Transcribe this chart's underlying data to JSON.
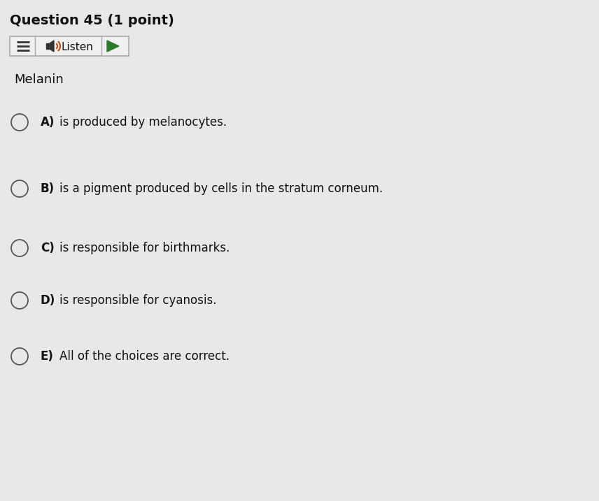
{
  "background_color": "#e8e8e8",
  "title": "Question 45 (1 point)",
  "title_fontsize": 14,
  "question_text": "Melanin",
  "question_fontsize": 13,
  "options": [
    {
      "label": "A)",
      "text": "is produced by melanocytes."
    },
    {
      "label": "B)",
      "text": "is a pigment produced by cells in the stratum corneum."
    },
    {
      "label": "C)",
      "text": "is responsible for birthmarks."
    },
    {
      "label": "D)",
      "text": "is responsible for cyanosis."
    },
    {
      "label": "E)",
      "text": "All of the choices are correct."
    }
  ],
  "option_fontsize": 12,
  "label_fontsize": 12,
  "text_color": "#111111",
  "circle_color": "#555555",
  "toolbar_bg": "#f0f0f0",
  "toolbar_edge": "#aaaaaa",
  "green_color": "#2a7a2a"
}
